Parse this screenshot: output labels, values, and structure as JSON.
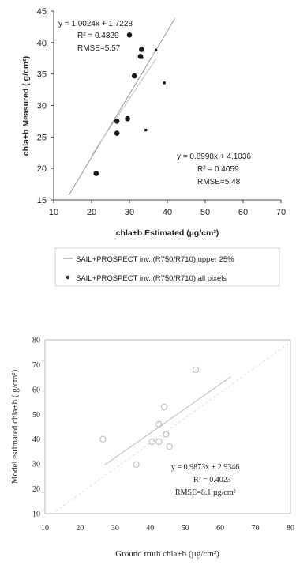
{
  "chart_data": [
    {
      "type": "scatter",
      "xlabel": "chla+b Estimated (µg/cm²)",
      "ylabel": "chla+b Measured (   g/cm²)",
      "xlim": [
        10,
        70
      ],
      "ylim": [
        15,
        45
      ],
      "xticks": [
        "10",
        "20",
        "30",
        "40",
        "50",
        "60",
        "70"
      ],
      "yticks": [
        "15",
        "20",
        "25",
        "30",
        "35",
        "40",
        "45"
      ],
      "grid": false,
      "legend_position": "bottom",
      "series": [
        {
          "name": "SAIL+PROSPECT inv. (R750/R710) upper 25%",
          "marker": "large-dot",
          "points": [
            [
              30,
              41.2
            ],
            [
              21.2,
              19.2
            ],
            [
              29.5,
              27.9
            ],
            [
              26.7,
              27.5
            ],
            [
              26.7,
              25.6
            ],
            [
              31.3,
              34.7
            ],
            [
              32.9,
              37.8
            ],
            [
              33.2,
              38.9
            ]
          ],
          "trendline": {
            "slope": 1.0024,
            "intercept": 1.7228,
            "x": [
              14,
              42
            ]
          }
        },
        {
          "name": "SAIL+PROSPECT inv. (R750/R710) all pixels",
          "marker": "small-dot",
          "points": [
            [
              37,
              38.8
            ],
            [
              39.2,
              33.6
            ],
            [
              34.3,
              26.1
            ],
            [
              33.3,
              37.6
            ]
          ],
          "trendline": {
            "slope": 0.8998,
            "intercept": 4.1036,
            "x": [
              20,
              37
            ]
          }
        }
      ],
      "annotations": [
        {
          "equation": "y = 1.0024x + 1.7228",
          "r2": "R² = 0.4329",
          "rmse": "RMSE=5.57"
        },
        {
          "equation": "y = 0.8998x + 4.1036",
          "r2": "R² = 0.4059",
          "rmse": "RMSE=5.48"
        }
      ]
    },
    {
      "type": "scatter",
      "xlabel": "Ground truth chla+b (µg/cm²)",
      "ylabel": "Model estimated chla+b (   g/cm²)",
      "xlim": [
        10,
        80
      ],
      "ylim": [
        10,
        80
      ],
      "xticks": [
        "10",
        "20",
        "30",
        "40",
        "50",
        "60",
        "70",
        "80"
      ],
      "yticks": [
        "10",
        "20",
        "30",
        "40",
        "50",
        "60",
        "70",
        "80"
      ],
      "grid": false,
      "series": [
        {
          "marker": "open-circle",
          "points": [
            [
              26.5,
              40
            ],
            [
              36,
              29.8
            ],
            [
              40.5,
              39
            ],
            [
              42.5,
              46
            ],
            [
              42.5,
              39
            ],
            [
              44,
              53
            ],
            [
              44.5,
              42
            ],
            [
              45.5,
              37
            ],
            [
              53,
              68
            ]
          ],
          "trendline": {
            "slope": 0.9873,
            "intercept": 2.9346,
            "x": [
              27,
              63
            ]
          }
        }
      ],
      "annotations": [
        {
          "equation": "y = 0.9873x + 2.9346",
          "r2": "R² = 0.4023",
          "rmse": "RMSE=8.1 µg/cm²"
        }
      ]
    }
  ]
}
